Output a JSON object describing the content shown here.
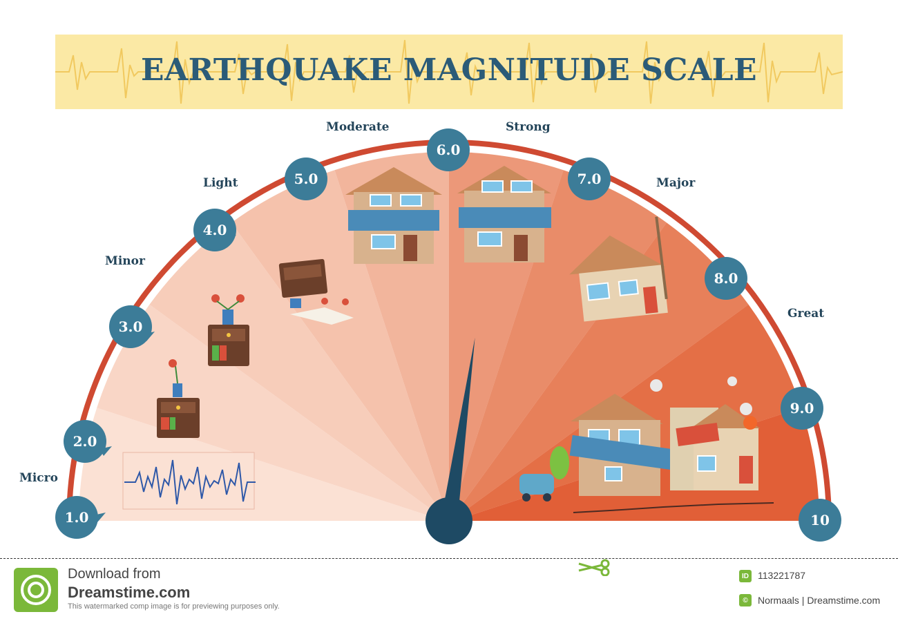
{
  "title": "EARTHQUAKE MAGNITUDE SCALE",
  "categories": [
    "Micro",
    "Minor",
    "Light",
    "Moderate",
    "Strong",
    "Major",
    "Great"
  ],
  "magnitudes": [
    "1.0",
    "2.0",
    "3.0",
    "4.0",
    "5.0",
    "6.0",
    "7.0",
    "8.0",
    "9.0",
    "10"
  ],
  "gauge": {
    "needle_value": 6.0,
    "min": 1.0,
    "max": 10
  },
  "colors": {
    "title": "#2b5b78",
    "badge": "#3c7c98",
    "arc": "#cf4a32",
    "banner": "#fbe9a5",
    "needle": "#1e4a64"
  },
  "footer": {
    "download_text": "Download from",
    "site": "Dreamstime.com",
    "note": "This watermarked comp image is for previewing purposes only.",
    "id_tag": "ID",
    "id": "113221787",
    "author": "Normaals | Dreamstime.com"
  }
}
